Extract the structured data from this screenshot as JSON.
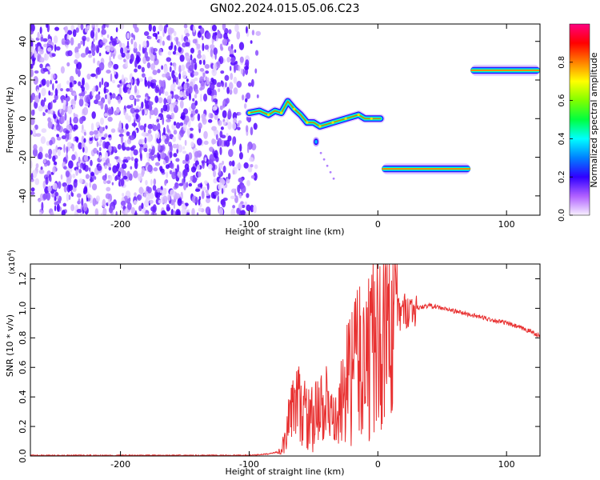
{
  "title": "GN02.2024.015.05.06.C23",
  "chart_data": [
    {
      "type": "heatmap",
      "name": "spectrogram",
      "xlabel": "Height of straight line (km)",
      "ylabel": "Frequency (Hz)",
      "xlim": [
        -270,
        126
      ],
      "ylim": [
        -50,
        49
      ],
      "xticks": [
        -200,
        -100,
        0,
        100
      ],
      "yticks": [
        -40,
        -20,
        0,
        20,
        40
      ],
      "grid": false,
      "colorbar": {
        "label": "Normalized spectral amplitude",
        "range": [
          0.0,
          1.0
        ],
        "ticks": [
          "0.0",
          "0.2",
          "0.4",
          "0.6",
          "0.8"
        ],
        "tick_values": [
          0.0,
          0.2,
          0.4,
          0.6,
          0.8
        ],
        "colors": [
          "#f8f0ff",
          "#b060ff",
          "#3000ff",
          "#0080ff",
          "#00ffff",
          "#00ff40",
          "#80ff00",
          "#ffff00",
          "#ff8000",
          "#ff0000",
          "#ff0080"
        ]
      },
      "features": [
        {
          "kind": "noise",
          "x_range": [
            -270,
            -92
          ],
          "y_range": [
            -50,
            49
          ]
        },
        {
          "kind": "trace",
          "points": [
            [
              -100,
              3
            ],
            [
              -92,
              4
            ],
            [
              -85,
              2
            ],
            [
              -80,
              4
            ],
            [
              -75,
              3
            ],
            [
              -70,
              9
            ],
            [
              -65,
              5
            ],
            [
              -60,
              2
            ],
            [
              -55,
              -2
            ],
            [
              -50,
              -2
            ],
            [
              -45,
              -4
            ],
            [
              -40,
              -3
            ],
            [
              -35,
              -2
            ],
            [
              -30,
              -1
            ],
            [
              -25,
              0
            ],
            [
              -20,
              1
            ],
            [
              -15,
              2
            ],
            [
              -10,
              0
            ],
            [
              -5,
              0
            ],
            [
              2,
              0
            ]
          ]
        },
        {
          "kind": "band",
          "x_range": [
            3,
            72
          ],
          "y": -26
        },
        {
          "kind": "band",
          "x_range": [
            72,
            126
          ],
          "y": 25
        },
        {
          "kind": "blob",
          "x": -48,
          "y": -12
        }
      ]
    },
    {
      "type": "line",
      "name": "snr",
      "xlabel": "Height of straight line (km)",
      "ylabel": "SNR (10 * v/v)",
      "yexponent": "(x10",
      "yexponent_power": "4",
      "xlim": [
        -270,
        126
      ],
      "ylim": [
        0,
        1.3
      ],
      "xticks": [
        -200,
        -100,
        0,
        100
      ],
      "yticks": [
        "0.0",
        "0.2",
        "0.4",
        "0.6",
        "0.8",
        "1.0",
        "1.2"
      ],
      "ytick_values": [
        0.0,
        0.2,
        0.4,
        0.6,
        0.8,
        1.0,
        1.2
      ],
      "grid": false,
      "color": "#e83030",
      "series": [
        {
          "x": [
            -270,
            -200,
            -150,
            -100,
            -85,
            -75,
            -70,
            -65,
            -60,
            -55,
            -50,
            -45,
            -40,
            -35,
            -30,
            -25,
            -20,
            -17,
            -15,
            -10,
            -5,
            0,
            5,
            10,
            15,
            20,
            25,
            30,
            40,
            50,
            60,
            70,
            80,
            90,
            100,
            110,
            120,
            126
          ],
          "y": [
            0.0,
            0.0,
            0.0,
            0.0,
            0.01,
            0.03,
            0.2,
            0.3,
            0.35,
            0.25,
            0.25,
            0.3,
            0.35,
            0.2,
            0.3,
            0.45,
            0.55,
            0.7,
            0.6,
            0.65,
            0.7,
            0.75,
            0.85,
            0.9,
            0.95,
            0.98,
            1.0,
            1.0,
            1.02,
            1.0,
            0.98,
            0.96,
            0.94,
            0.92,
            0.9,
            0.87,
            0.84,
            0.81
          ]
        }
      ]
    }
  ]
}
